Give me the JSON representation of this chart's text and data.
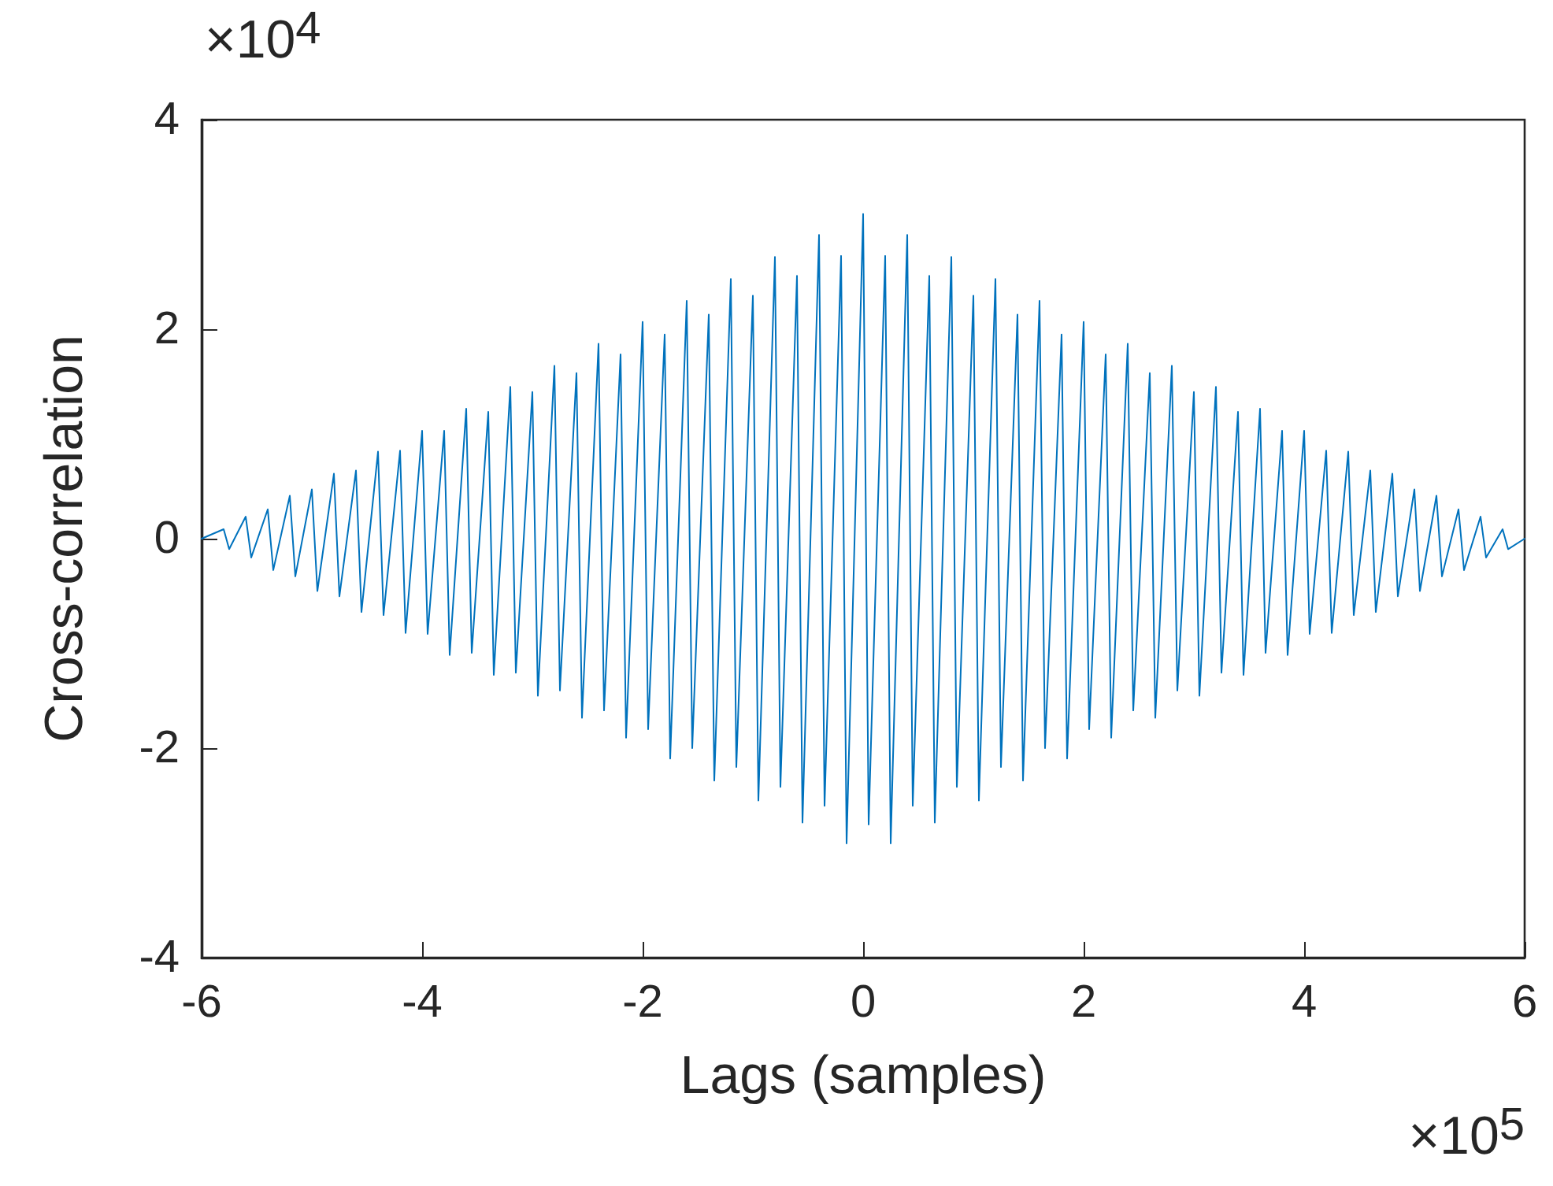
{
  "chart_data": {
    "type": "line",
    "xlabel": "Lags (samples)",
    "ylabel": "Cross-correlation",
    "annotations": [
      "×10$^{4}$",
      "×10$^{5}$"
    ],
    "xlim": [
      -6,
      6
    ],
    "xticks": [
      -6,
      -4,
      -2,
      0,
      2,
      4,
      6
    ],
    "ylim": [
      -4,
      4
    ],
    "yticks": [
      -4,
      -2,
      0,
      2,
      4
    ],
    "grid": false,
    "marker": "none",
    "line_style": "solid",
    "series": [
      {
        "color": "#0072bd",
        "x": [
          -6,
          -5.8,
          -5.75,
          -5.6,
          -5.55,
          -5.4,
          -5.35,
          -5.2,
          -5.15,
          -5,
          -4.95,
          -4.8,
          -4.75,
          -4.6,
          -4.55,
          -4.4,
          -4.35,
          -4.2,
          -4.15,
          -4,
          -3.95,
          -3.8,
          -3.75,
          -3.6,
          -3.55,
          -3.4,
          -3.35,
          -3.2,
          -3.15,
          -3,
          -2.95,
          -2.8,
          -2.75,
          -2.6,
          -2.55,
          -2.4,
          -2.35,
          -2.2,
          -2.15,
          -2,
          -1.95,
          -1.8,
          -1.75,
          -1.6,
          -1.55,
          -1.4,
          -1.35,
          -1.2,
          -1.15,
          -1,
          -0.95,
          -0.8,
          -0.75,
          -0.6,
          -0.55,
          -0.4,
          -0.35,
          -0.2,
          -0.15,
          0,
          0.05,
          0.2,
          0.25,
          0.4,
          0.45,
          0.6,
          0.65,
          0.8,
          0.85,
          1,
          1.05,
          1.2,
          1.25,
          1.4,
          1.45,
          1.6,
          1.65,
          1.8,
          1.85,
          2,
          2.05,
          2.2,
          2.25,
          2.4,
          2.45,
          2.6,
          2.65,
          2.8,
          2.85,
          3,
          3.05,
          3.2,
          3.25,
          3.4,
          3.45,
          3.6,
          3.65,
          3.8,
          3.85,
          4,
          4.05,
          4.2,
          4.25,
          4.4,
          4.45,
          4.6,
          4.65,
          4.8,
          4.85,
          5,
          5.05,
          5.2,
          5.25,
          5.4,
          5.45,
          5.6,
          5.65,
          5.8,
          5.85,
          6
        ],
        "values": [
          0,
          0.09,
          -0.1,
          0.21,
          -0.18,
          0.28,
          -0.3,
          0.41,
          -0.36,
          0.47,
          -0.5,
          0.62,
          -0.55,
          0.65,
          -0.7,
          0.83,
          -0.73,
          0.84,
          -0.9,
          1.03,
          -0.91,
          1.03,
          -1.11,
          1.24,
          -1.09,
          1.21,
          -1.3,
          1.45,
          -1.28,
          1.4,
          -1.5,
          1.65,
          -1.45,
          1.58,
          -1.71,
          1.86,
          -1.64,
          1.76,
          -1.9,
          2.07,
          -1.82,
          1.95,
          -2.1,
          2.27,
          -2,
          2.14,
          -2.31,
          2.48,
          -2.18,
          2.32,
          -2.5,
          2.69,
          -2.37,
          2.51,
          -2.71,
          2.9,
          -2.55,
          2.7,
          -2.91,
          3.1,
          -2.73,
          2.7,
          -2.91,
          2.9,
          -2.55,
          2.51,
          -2.71,
          2.69,
          -2.37,
          2.32,
          -2.5,
          2.48,
          -2.18,
          2.14,
          -2.31,
          2.27,
          -2,
          1.95,
          -2.1,
          2.07,
          -1.82,
          1.76,
          -1.9,
          1.86,
          -1.64,
          1.58,
          -1.71,
          1.65,
          -1.45,
          1.4,
          -1.5,
          1.45,
          -1.28,
          1.21,
          -1.3,
          1.24,
          -1.09,
          1.03,
          -1.11,
          1.03,
          -0.91,
          0.84,
          -0.9,
          0.83,
          -0.73,
          0.65,
          -0.7,
          0.62,
          -0.55,
          0.47,
          -0.5,
          0.41,
          -0.36,
          0.28,
          -0.3,
          0.21,
          -0.18,
          0.09,
          -0.1,
          0
        ]
      }
    ]
  }
}
